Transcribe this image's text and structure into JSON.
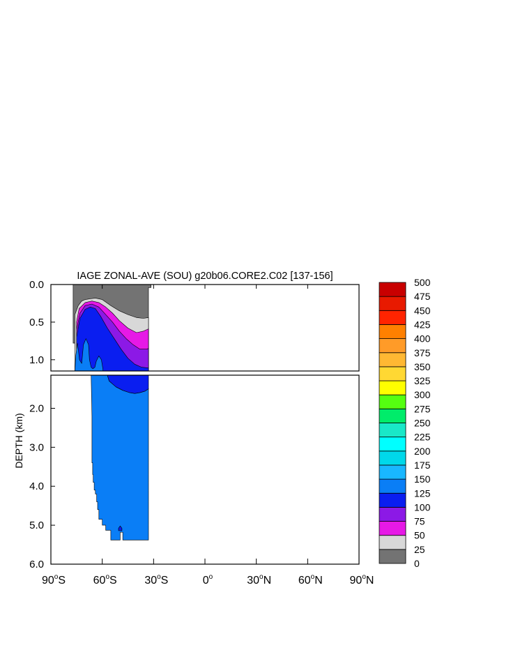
{
  "chart_data": {
    "type": "contour",
    "title": "IAGE ZONAL-AVE (SOU) g20b06.CORE2.C02 [137-156]",
    "ylabel": "DEPTH (km)",
    "xlabel": "",
    "xlim": [
      -90,
      90
    ],
    "ylim_upper_panel": [
      0,
      1.15
    ],
    "ylim_lower_panel": [
      1.15,
      6
    ],
    "y_inverted": true,
    "xticks": [
      {
        "value": -90,
        "num": "90",
        "hemi": "S"
      },
      {
        "value": -60,
        "num": "60",
        "hemi": "S"
      },
      {
        "value": -30,
        "num": "30",
        "hemi": "S"
      },
      {
        "value": 0,
        "num": "0",
        "hemi": ""
      },
      {
        "value": 30,
        "num": "30",
        "hemi": "N"
      },
      {
        "value": 60,
        "num": "60",
        "hemi": "N"
      },
      {
        "value": 90,
        "num": "90",
        "hemi": "N"
      }
    ],
    "yticks_upper": [
      {
        "value": 0.0,
        "label": "0.0"
      },
      {
        "value": 0.5,
        "label": "0.5"
      },
      {
        "value": 1.0,
        "label": "1.0"
      }
    ],
    "yticks_lower": [
      {
        "value": 2.0,
        "label": "2.0"
      },
      {
        "value": 3.0,
        "label": "3.0"
      },
      {
        "value": 4.0,
        "label": "4.0"
      },
      {
        "value": 5.0,
        "label": "5.0"
      },
      {
        "value": 6.0,
        "label": "6.0"
      }
    ],
    "colorbar": {
      "labels": [
        "0",
        "25",
        "50",
        "75",
        "100",
        "125",
        "150",
        "175",
        "200",
        "225",
        "250",
        "275",
        "300",
        "325",
        "350",
        "375",
        "400",
        "425",
        "450",
        "475",
        "500"
      ],
      "colors": [
        "#737373",
        "#d8d8d8",
        "#e619e6",
        "#8c19e6",
        "#0a1ef0",
        "#0a7ef6",
        "#19b7ff",
        "#00d8ea",
        "#00ffff",
        "#19e8c8",
        "#00ec6a",
        "#55ff11",
        "#ffff00",
        "#ffd833",
        "#ffb833",
        "#ff9b28",
        "#ff8000",
        "#ff2400",
        "#e81a00",
        "#c80000"
      ]
    },
    "regions": [
      {
        "level": "0-25",
        "color": "#737373",
        "points": [
          [
            -77,
            0
          ],
          [
            -31.5,
            0
          ],
          [
            -31.5,
            0.04
          ],
          [
            -33,
            0.04
          ],
          [
            -33,
            1.15
          ],
          [
            -75.5,
            1.15
          ],
          [
            -75.5,
            0.78
          ],
          [
            -77,
            0.78
          ]
        ]
      },
      {
        "level": "25-50",
        "color": "#d8d8d8",
        "points": [
          [
            -76,
            0.8
          ],
          [
            -76,
            0.4
          ],
          [
            -74,
            0.28
          ],
          [
            -72,
            0.22
          ],
          [
            -70,
            0.2
          ],
          [
            -67,
            0.19
          ],
          [
            -64,
            0.18
          ],
          [
            -60,
            0.2
          ],
          [
            -55,
            0.28
          ],
          [
            -50,
            0.35
          ],
          [
            -45,
            0.4
          ],
          [
            -40,
            0.44
          ],
          [
            -36,
            0.45
          ],
          [
            -33,
            0.44
          ],
          [
            -33,
            1.15
          ],
          [
            -76,
            1.15
          ]
        ]
      },
      {
        "level": "50-75",
        "color": "#e619e6",
        "points": [
          [
            -75,
            1.15
          ],
          [
            -75,
            0.5
          ],
          [
            -73.5,
            0.32
          ],
          [
            -70,
            0.24
          ],
          [
            -66,
            0.22
          ],
          [
            -62,
            0.24
          ],
          [
            -58,
            0.3
          ],
          [
            -54,
            0.38
          ],
          [
            -50,
            0.48
          ],
          [
            -45,
            0.58
          ],
          [
            -40,
            0.64
          ],
          [
            -36,
            0.62
          ],
          [
            -33,
            0.59
          ],
          [
            -33,
            1.15
          ]
        ]
      },
      {
        "level": "75-100",
        "color": "#8c19e6",
        "points": [
          [
            -75,
            1.15
          ],
          [
            -75,
            0.6
          ],
          [
            -73,
            0.38
          ],
          [
            -70,
            0.28
          ],
          [
            -66,
            0.26
          ],
          [
            -62,
            0.3
          ],
          [
            -58,
            0.4
          ],
          [
            -54,
            0.5
          ],
          [
            -50,
            0.62
          ],
          [
            -46,
            0.72
          ],
          [
            -42,
            0.8
          ],
          [
            -38,
            0.86
          ],
          [
            -34,
            0.86
          ],
          [
            -33,
            0.85
          ],
          [
            -33,
            1.15
          ]
        ]
      },
      {
        "level": "100-125",
        "color": "#0a1ef0",
        "points": [
          [
            -75,
            1.15
          ],
          [
            -75,
            0.7
          ],
          [
            -73,
            0.45
          ],
          [
            -70,
            0.33
          ],
          [
            -67,
            0.3
          ],
          [
            -64,
            0.32
          ],
          [
            -61,
            0.42
          ],
          [
            -57,
            0.58
          ],
          [
            -53,
            0.72
          ],
          [
            -49,
            0.86
          ],
          [
            -45,
            0.98
          ],
          [
            -41,
            1.06
          ],
          [
            -37,
            1.1
          ],
          [
            -33,
            1.11
          ],
          [
            -33,
            1.15
          ]
        ]
      },
      {
        "level": "100-125-lower",
        "color": "#0a1ef0",
        "points": [
          [
            -57,
            1.15
          ],
          [
            -33,
            1.15
          ],
          [
            -33,
            1.5
          ],
          [
            -35,
            1.56
          ],
          [
            -38,
            1.6
          ],
          [
            -41,
            1.62
          ],
          [
            -44,
            1.6
          ],
          [
            -48,
            1.54
          ],
          [
            -52,
            1.45
          ],
          [
            -56,
            1.3
          ]
        ]
      },
      {
        "level": "125-150",
        "color": "#0a7ef6",
        "points": [
          [
            -76,
            1.15
          ],
          [
            -75.5,
            0.95
          ],
          [
            -74.5,
            0.78
          ],
          [
            -73.8,
            0.9
          ],
          [
            -73.3,
            1.0
          ],
          [
            -72,
            1.05
          ],
          [
            -71,
            0.8
          ],
          [
            -69.5,
            0.72
          ],
          [
            -68,
            0.8
          ],
          [
            -67.5,
            1.0
          ],
          [
            -66.5,
            1.1
          ],
          [
            -65.5,
            1.12
          ],
          [
            -64.3,
            1.1
          ],
          [
            -63.5,
            1.02
          ],
          [
            -62,
            0.95
          ],
          [
            -60.5,
            1.0
          ],
          [
            -59.8,
            1.1
          ],
          [
            -59.5,
            1.15
          ]
        ]
      },
      {
        "level": "125-150-lower",
        "color": "#0a7ef6",
        "points": [
          [
            -76,
            1.15
          ],
          [
            -57,
            1.15
          ],
          [
            -56,
            1.3
          ],
          [
            -52,
            1.45
          ],
          [
            -48,
            1.54
          ],
          [
            -44,
            1.6
          ],
          [
            -41,
            1.62
          ],
          [
            -38,
            1.6
          ],
          [
            -35,
            1.56
          ],
          [
            -33,
            1.5
          ],
          [
            -33,
            5.38
          ],
          [
            -48,
            5.38
          ],
          [
            -48,
            5.18
          ],
          [
            -49.5,
            5.18
          ],
          [
            -49.5,
            5.38
          ],
          [
            -55,
            5.38
          ],
          [
            -55,
            5.13
          ],
          [
            -58,
            5.13
          ],
          [
            -58,
            5.0
          ],
          [
            -60,
            5.0
          ],
          [
            -60,
            4.85
          ],
          [
            -62,
            4.85
          ],
          [
            -62,
            4.6
          ],
          [
            -62.7,
            4.6
          ],
          [
            -62.7,
            4.4
          ],
          [
            -63.3,
            4.4
          ],
          [
            -63.3,
            4.2
          ],
          [
            -64,
            4.2
          ],
          [
            -64,
            4.1
          ],
          [
            -64.7,
            4.1
          ],
          [
            -64.7,
            3.9
          ],
          [
            -65.3,
            3.9
          ],
          [
            -65.3,
            3.7
          ],
          [
            -65.6,
            3.7
          ],
          [
            -65.6,
            3.4
          ],
          [
            -66,
            3.4
          ],
          [
            -66,
            2.2
          ],
          [
            -66.5,
            1.15
          ]
        ]
      },
      {
        "level": "100-125-blob",
        "color": "#0a1ef0",
        "points": [
          [
            -50.5,
            5.08
          ],
          [
            -49.5,
            5.02
          ],
          [
            -48.5,
            5.08
          ],
          [
            -48.5,
            5.14
          ],
          [
            -50.5,
            5.14
          ]
        ]
      }
    ]
  }
}
